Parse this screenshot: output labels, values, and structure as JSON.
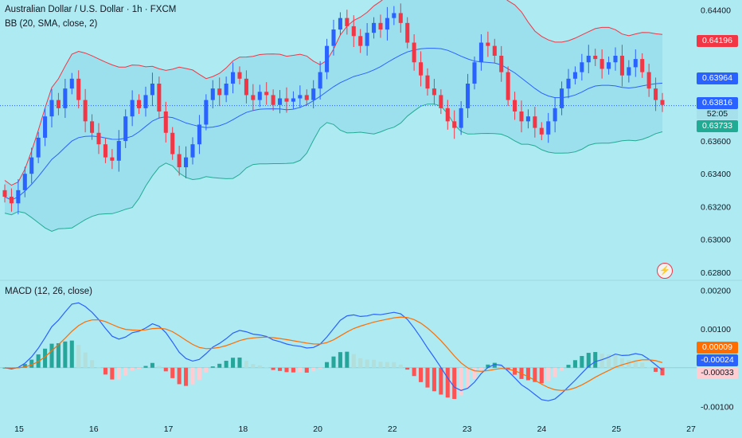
{
  "header": {
    "title": "Australian Dollar / U.S. Dollar · 1h · FXCM",
    "bb_label": "BB (20, SMA, close, 2)",
    "macd_label": "MACD (12, 26, close)"
  },
  "price_axis": {
    "ticks": [
      "0.64400",
      "0.64000",
      "0.63600",
      "0.63400",
      "0.63200",
      "0.63000",
      "0.62800"
    ],
    "tags": {
      "upper_band": "0.64196",
      "middle_band": "0.63964",
      "last_price": "0.63816",
      "countdown": "52:05",
      "lower_band": "0.63733"
    }
  },
  "macd_axis": {
    "ticks": [
      "0.00200",
      "0.00100",
      "-0.00100"
    ],
    "tags": {
      "signal": "0.00009",
      "macd": "-0.00024",
      "histogram": "-0.00033"
    }
  },
  "time_axis": {
    "labels": [
      "15",
      "16",
      "17",
      "18",
      "20",
      "22",
      "23",
      "24",
      "25",
      "27"
    ]
  },
  "colors": {
    "background": "#aeeaf2",
    "band_fill": "#8fd9e9",
    "up": "#2962ff",
    "down": "#f23645",
    "upper_band": "#f23645",
    "basis": "#2962ff",
    "lower_band": "#22ab94",
    "macd_line": "#2962ff",
    "signal_line": "#ff6d00",
    "hist_up_strong": "#26a69a",
    "hist_up_weak": "#b2dfdb",
    "hist_down_strong": "#ff5252",
    "hist_down_weak": "#ffcdd2"
  },
  "chart_data": {
    "type": "candlestick",
    "symbol": "Australian Dollar / U.S. Dollar",
    "interval": "1h",
    "source": "FXCM",
    "close_series": [
      0.6326,
      0.6322,
      0.633,
      0.634,
      0.635,
      0.6362,
      0.6375,
      0.6385,
      0.638,
      0.6392,
      0.6398,
      0.6385,
      0.6372,
      0.6365,
      0.6358,
      0.635,
      0.6348,
      0.636,
      0.6375,
      0.6385,
      0.638,
      0.6388,
      0.6395,
      0.6378,
      0.6365,
      0.6352,
      0.6344,
      0.635,
      0.6358,
      0.637,
      0.6385,
      0.6392,
      0.6388,
      0.6395,
      0.6402,
      0.6398,
      0.6388,
      0.6385,
      0.639,
      0.6388,
      0.6382,
      0.6386,
      0.6384,
      0.6386,
      0.6388,
      0.6385,
      0.6392,
      0.6402,
      0.6418,
      0.6428,
      0.6435,
      0.643,
      0.6424,
      0.6418,
      0.6426,
      0.6432,
      0.6428,
      0.6435,
      0.6438,
      0.6432,
      0.642,
      0.6408,
      0.64,
      0.6392,
      0.6388,
      0.638,
      0.6372,
      0.6368,
      0.638,
      0.6395,
      0.6408,
      0.642,
      0.6418,
      0.6412,
      0.6402,
      0.6385,
      0.6378,
      0.6372,
      0.6375,
      0.6368,
      0.6364,
      0.6372,
      0.638,
      0.6392,
      0.6398,
      0.6402,
      0.6408,
      0.6412,
      0.641,
      0.6404,
      0.6408,
      0.6412,
      0.64,
      0.6405,
      0.641,
      0.6402,
      0.6392,
      0.6385,
      0.6382
    ],
    "price_axis_range": [
      0.6276,
      0.6446
    ],
    "bollinger": {
      "period": 20,
      "stddev": 2,
      "upper_last": 0.64196,
      "basis_last": 0.63964,
      "lower_last": 0.63733
    },
    "last_price": 0.63816,
    "macd": {
      "fast": 12,
      "slow": 26,
      "macd_last": -0.00024,
      "signal_last": 9e-05,
      "histogram_last": -0.00033
    },
    "macd_axis_range": [
      -0.0012,
      0.0022
    ],
    "x_labels": [
      "15",
      "16",
      "17",
      "18",
      "20",
      "22",
      "23",
      "24",
      "25",
      "27"
    ]
  }
}
